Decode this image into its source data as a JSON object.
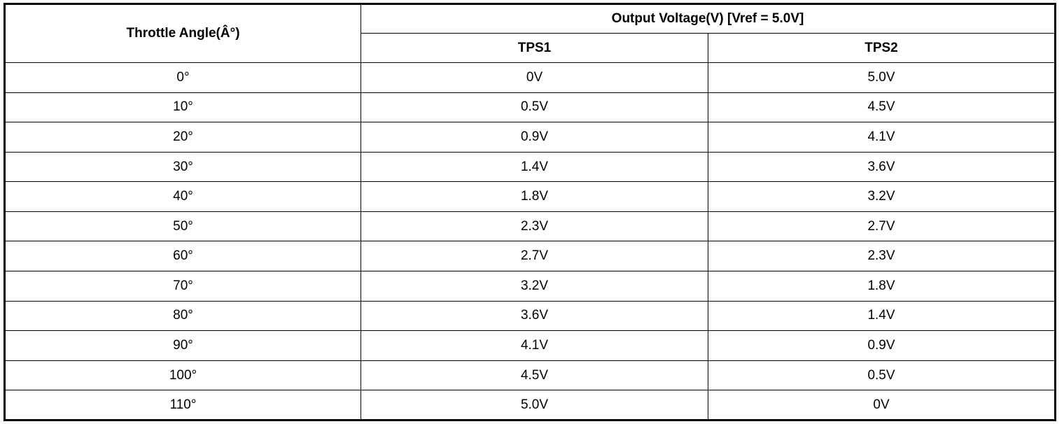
{
  "table": {
    "header": {
      "angle": "Throttle Angle(Â°)",
      "output_group": "Output Voltage(V) [Vref = 5.0V]",
      "tps1": "TPS1",
      "tps2": "TPS2"
    },
    "rows": [
      {
        "angle": "0°",
        "tps1": "0V",
        "tps2": "5.0V"
      },
      {
        "angle": "10°",
        "tps1": "0.5V",
        "tps2": "4.5V"
      },
      {
        "angle": "20°",
        "tps1": "0.9V",
        "tps2": "4.1V"
      },
      {
        "angle": "30°",
        "tps1": "1.4V",
        "tps2": "3.6V"
      },
      {
        "angle": "40°",
        "tps1": "1.8V",
        "tps2": "3.2V"
      },
      {
        "angle": "50°",
        "tps1": "2.3V",
        "tps2": "2.7V"
      },
      {
        "angle": "60°",
        "tps1": "2.7V",
        "tps2": "2.3V"
      },
      {
        "angle": "70°",
        "tps1": "3.2V",
        "tps2": "1.8V"
      },
      {
        "angle": "80°",
        "tps1": "3.6V",
        "tps2": "1.4V"
      },
      {
        "angle": "90°",
        "tps1": "4.1V",
        "tps2": "0.9V"
      },
      {
        "angle": "100°",
        "tps1": "4.5V",
        "tps2": "0.5V"
      },
      {
        "angle": "110°",
        "tps1": "5.0V",
        "tps2": "0V"
      }
    ]
  }
}
